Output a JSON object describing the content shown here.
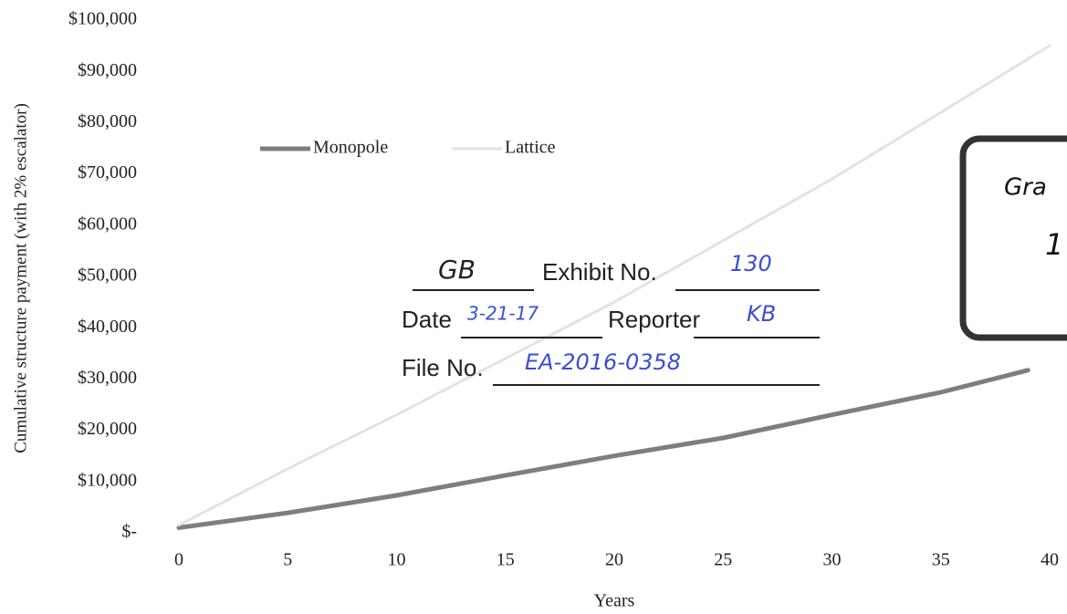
{
  "chart_data": {
    "type": "line",
    "y_label": "Cumulative structure payment (with 2% escalator)",
    "x_label": "Years",
    "xlim": [
      0,
      40
    ],
    "xticks": [
      0,
      5,
      10,
      15,
      20,
      25,
      30,
      35,
      40
    ],
    "ylim": [
      0,
      100000
    ],
    "yticks": [
      {
        "value": 0,
        "label": "$-"
      },
      {
        "value": 10000,
        "label": "$10,000"
      },
      {
        "value": 20000,
        "label": "$20,000"
      },
      {
        "value": 30000,
        "label": "$30,000"
      },
      {
        "value": 40000,
        "label": "$40,000"
      },
      {
        "value": 50000,
        "label": "$50,000"
      },
      {
        "value": 60000,
        "label": "$60,000"
      },
      {
        "value": 70000,
        "label": "$70,000"
      },
      {
        "value": 80000,
        "label": "$80,000"
      },
      {
        "value": 90000,
        "label": "$90,000"
      },
      {
        "value": 100000,
        "label": "$100,000"
      }
    ],
    "series": [
      {
        "name": "Monopole",
        "color": "#7d807a",
        "x": [
          0,
          5,
          10,
          15,
          20,
          25,
          30,
          35,
          39
        ],
        "values": [
          1000,
          3900,
          7300,
          11200,
          15000,
          18500,
          23000,
          27400,
          31700
        ]
      },
      {
        "name": "Lattice",
        "color": "#e4e3dc",
        "x": [
          0,
          5,
          10,
          15,
          20,
          25,
          30,
          35,
          40
        ],
        "values": [
          1500,
          12500,
          23000,
          34000,
          45000,
          57000,
          69000,
          82000,
          95000
        ]
      }
    ],
    "stamp": {
      "initials": "GB",
      "exhibit_label": "Exhibit No.",
      "exhibit_no": "130",
      "date_label": "Date",
      "date": "3-21-17",
      "reporter_label": "Reporter",
      "reporter": "KB",
      "file_label": "File No.",
      "file_no": "EA-2016-0358"
    },
    "side_box": {
      "line1": "Gra",
      "line2": "1"
    }
  }
}
